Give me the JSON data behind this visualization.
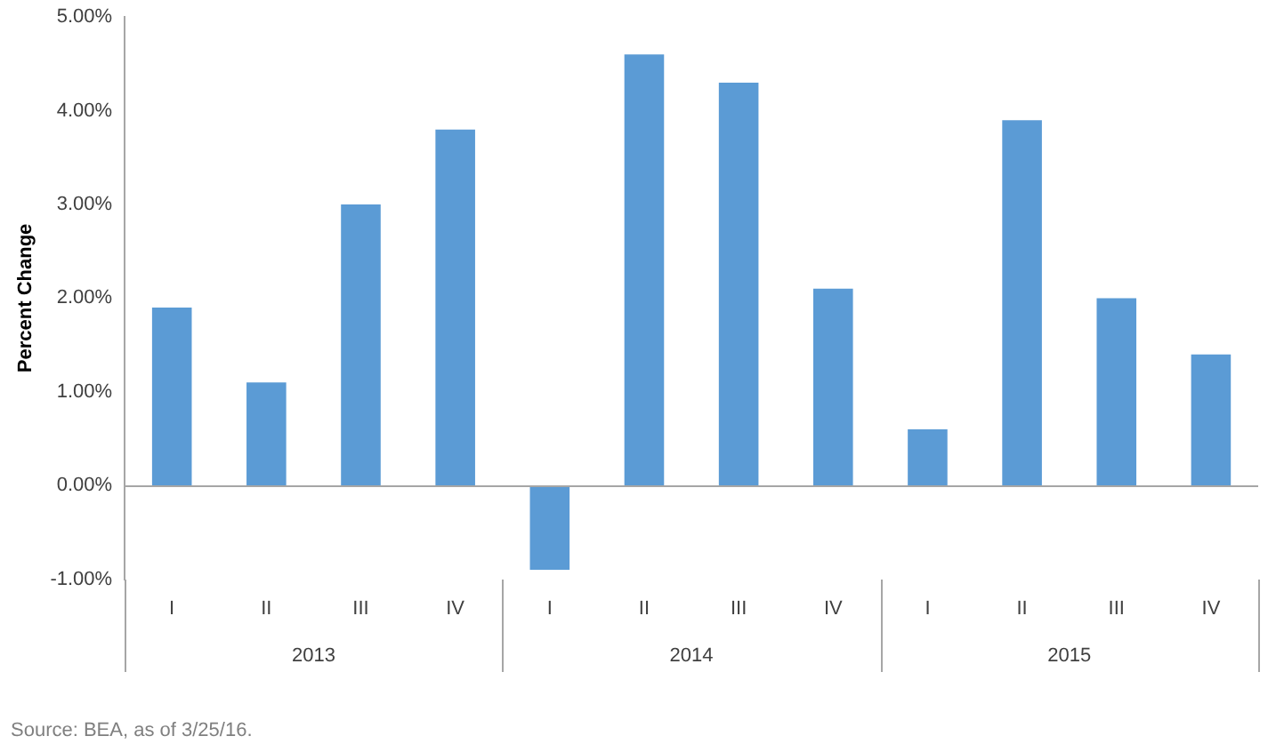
{
  "chart_data": {
    "type": "bar",
    "ylabel": "Percent Change",
    "categories": [
      "I",
      "II",
      "III",
      "IV",
      "I",
      "II",
      "III",
      "IV",
      "I",
      "II",
      "III",
      "IV"
    ],
    "values": [
      1.9,
      1.1,
      3.0,
      3.8,
      -0.9,
      4.6,
      4.3,
      2.1,
      0.6,
      3.9,
      2.0,
      1.4
    ],
    "color": "#5b9bd5",
    "ylim": [
      -1,
      5
    ],
    "yticks": [
      {
        "value": -1,
        "label": "-1.00%"
      },
      {
        "value": 0,
        "label": "0.00%"
      },
      {
        "value": 1,
        "label": "1.00%"
      },
      {
        "value": 2,
        "label": "2.00%"
      },
      {
        "value": 3,
        "label": "3.00%"
      },
      {
        "value": 4,
        "label": "4.00%"
      },
      {
        "value": 5,
        "label": "5.00%"
      }
    ],
    "grid": false,
    "legend": false,
    "annotations": [
      "2013",
      "2014",
      "2015",
      "Source: BEA, as of 3/25/16."
    ]
  }
}
